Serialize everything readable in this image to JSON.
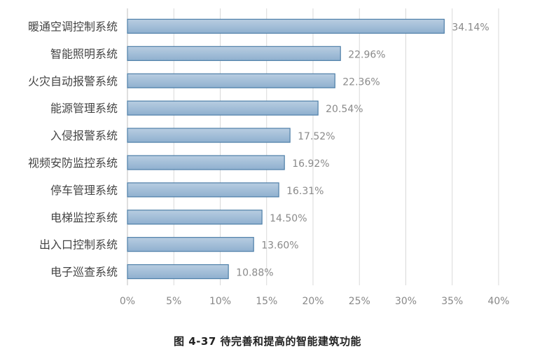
{
  "caption": "图 4-37 待完善和提高的智能建筑功能",
  "chart_data": {
    "type": "bar",
    "orientation": "horizontal",
    "categories": [
      "暖通空调控制系统",
      "智能照明系统",
      "火灾自动报警系统",
      "能源管理系统",
      "入侵报警系统",
      "视频安防监控系统",
      "停车管理系统",
      "电梯监控系统",
      "出入口控制系统",
      "电子巡查系统"
    ],
    "values": [
      34.14,
      22.96,
      22.36,
      20.54,
      17.52,
      16.92,
      16.31,
      14.5,
      13.6,
      10.88
    ],
    "data_labels": [
      "34.14%",
      "22.96%",
      "22.36%",
      "20.54%",
      "17.52%",
      "16.92%",
      "16.31%",
      "14.50%",
      "13.60%",
      "10.88%"
    ],
    "x_ticks": [
      0,
      5,
      10,
      15,
      20,
      25,
      30,
      35,
      40
    ],
    "x_tick_labels": [
      "0%",
      "5%",
      "10%",
      "15%",
      "20%",
      "25%",
      "30%",
      "35%",
      "40%"
    ],
    "xlim": [
      0,
      40
    ],
    "xlabel": "",
    "ylabel": "",
    "grid": "vertical",
    "legend": "none",
    "colors": {
      "bar_top": "#b8cde1",
      "bar_bottom": "#8fb0cf",
      "bar_stroke": "#4e7fa8",
      "grid": "#d9d9d9",
      "axis": "#bfbfbf"
    }
  }
}
